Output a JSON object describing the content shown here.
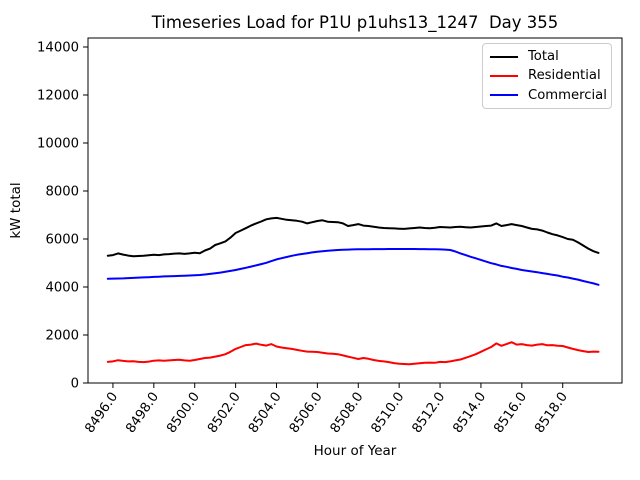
{
  "legend": {
    "position": "upper right",
    "items": [
      {
        "label": "Total",
        "color": "#000000"
      },
      {
        "label": "Residential",
        "color": "#ff0000"
      },
      {
        "label": "Commercial",
        "color": "#0000ff"
      }
    ]
  },
  "chart_data": {
    "type": "line",
    "title": "Timeseries Load for P1U p1uhs13_1247  Day 355",
    "xlabel": "Hour of Year",
    "ylabel": "kW total",
    "grid": false,
    "legend_position": "upper right",
    "xlim": [
      8494.78,
      8520.9
    ],
    "ylim": [
      0,
      14375
    ],
    "y_ticks": [
      0,
      2000,
      4000,
      6000,
      8000,
      10000,
      12000,
      14000
    ],
    "x_ticks": [
      {
        "value": 8496,
        "label": "8496.0"
      },
      {
        "value": 8498,
        "label": "8498.0"
      },
      {
        "value": 8500,
        "label": "8500.0"
      },
      {
        "value": 8502,
        "label": "8502.0"
      },
      {
        "value": 8504,
        "label": "8504.0"
      },
      {
        "value": 8506,
        "label": "8506.0"
      },
      {
        "value": 8508,
        "label": "8508.0"
      },
      {
        "value": 8510,
        "label": "8510.0"
      },
      {
        "value": 8512,
        "label": "8512.0"
      },
      {
        "value": 8514,
        "label": "8514.0"
      },
      {
        "value": 8516,
        "label": "8516.0"
      },
      {
        "value": 8518,
        "label": "8518.0"
      }
    ],
    "x_start": 8495.75,
    "x_step": 0.25,
    "series": [
      {
        "name": "Total",
        "color": "#000000",
        "values": [
          5300,
          5330,
          5400,
          5350,
          5310,
          5280,
          5290,
          5300,
          5320,
          5340,
          5330,
          5360,
          5370,
          5390,
          5400,
          5380,
          5400,
          5430,
          5410,
          5520,
          5600,
          5750,
          5820,
          5900,
          6060,
          6250,
          6350,
          6450,
          6560,
          6650,
          6730,
          6820,
          6860,
          6880,
          6840,
          6800,
          6780,
          6760,
          6720,
          6650,
          6700,
          6750,
          6780,
          6720,
          6710,
          6700,
          6650,
          6540,
          6580,
          6620,
          6560,
          6540,
          6510,
          6480,
          6460,
          6450,
          6440,
          6430,
          6420,
          6440,
          6460,
          6480,
          6460,
          6450,
          6470,
          6500,
          6490,
          6480,
          6500,
          6510,
          6490,
          6480,
          6500,
          6520,
          6540,
          6560,
          6650,
          6540,
          6580,
          6620,
          6580,
          6540,
          6480,
          6420,
          6400,
          6350,
          6270,
          6200,
          6150,
          6080,
          6000,
          5970,
          5860,
          5730,
          5600,
          5490,
          5420
        ]
      },
      {
        "name": "Residential",
        "color": "#ff0000",
        "values": [
          880,
          900,
          950,
          920,
          900,
          910,
          880,
          870,
          890,
          930,
          940,
          930,
          940,
          960,
          970,
          940,
          930,
          960,
          1000,
          1040,
          1060,
          1100,
          1140,
          1200,
          1300,
          1420,
          1500,
          1580,
          1600,
          1640,
          1590,
          1560,
          1620,
          1520,
          1480,
          1450,
          1420,
          1380,
          1340,
          1310,
          1300,
          1290,
          1260,
          1230,
          1220,
          1200,
          1150,
          1100,
          1050,
          1000,
          1040,
          1010,
          960,
          920,
          900,
          870,
          830,
          800,
          790,
          780,
          800,
          820,
          840,
          850,
          840,
          880,
          870,
          900,
          940,
          980,
          1050,
          1120,
          1200,
          1300,
          1400,
          1500,
          1650,
          1550,
          1620,
          1700,
          1600,
          1620,
          1580,
          1560,
          1600,
          1620,
          1570,
          1580,
          1550,
          1540,
          1480,
          1420,
          1370,
          1330,
          1290,
          1310,
          1300
        ]
      },
      {
        "name": "Commercial",
        "color": "#0000ff",
        "values": [
          4340,
          4350,
          4355,
          4360,
          4370,
          4380,
          4390,
          4400,
          4410,
          4420,
          4430,
          4440,
          4448,
          4455,
          4462,
          4470,
          4478,
          4488,
          4500,
          4520,
          4545,
          4570,
          4600,
          4635,
          4670,
          4710,
          4755,
          4800,
          4850,
          4900,
          4955,
          5010,
          5080,
          5150,
          5200,
          5250,
          5300,
          5340,
          5375,
          5410,
          5440,
          5465,
          5490,
          5510,
          5525,
          5540,
          5550,
          5560,
          5565,
          5570,
          5572,
          5575,
          5578,
          5580,
          5581,
          5582,
          5583,
          5584,
          5585,
          5584,
          5582,
          5580,
          5578,
          5575,
          5572,
          5568,
          5560,
          5540,
          5480,
          5400,
          5330,
          5260,
          5195,
          5130,
          5060,
          4990,
          4940,
          4880,
          4840,
          4790,
          4755,
          4710,
          4680,
          4645,
          4615,
          4580,
          4545,
          4510,
          4480,
          4430,
          4395,
          4350,
          4310,
          4250,
          4200,
          4150,
          4090
        ]
      }
    ]
  }
}
